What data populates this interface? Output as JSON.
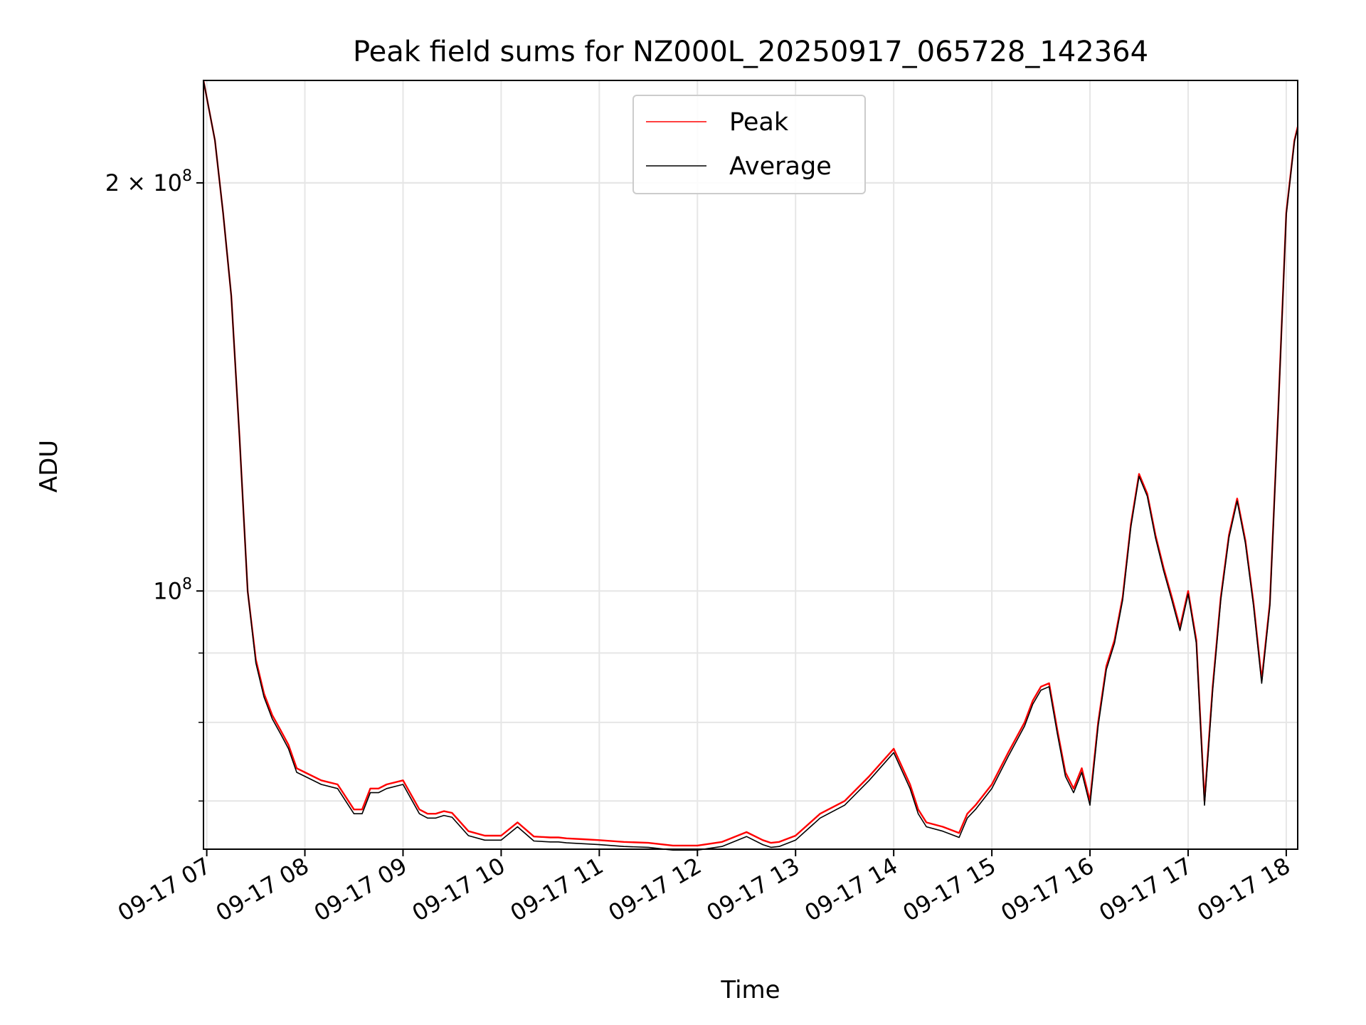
{
  "chart_data": {
    "type": "line",
    "title": "Peak field sums for NZ000L_20250917_065728_142364",
    "xlabel": "Time",
    "ylabel": "ADU",
    "yscale": "log",
    "grid": true,
    "legend_position": "top-center",
    "x_tick_labels": [
      "09-17 07",
      "09-17 08",
      "09-17 09",
      "09-17 10",
      "09-17 11",
      "09-17 12",
      "09-17 13",
      "09-17 14",
      "09-17 15",
      "09-17 16",
      "09-17 17",
      "09-17 18"
    ],
    "y_tick_labels": [
      {
        "value": 200000000,
        "base": "2 × 10",
        "exp": "8"
      },
      {
        "value": 100000000,
        "base": "10",
        "exp": "8"
      }
    ],
    "xlim": [
      "2025-09-17 06:58",
      "2025-09-17 18:07"
    ],
    "ylim": [
      64500000,
      238000000
    ],
    "x": [
      "06:58",
      "07:05",
      "07:10",
      "07:15",
      "07:20",
      "07:25",
      "07:30",
      "07:35",
      "07:40",
      "07:45",
      "07:50",
      "07:55",
      "08:00",
      "08:10",
      "08:20",
      "08:30",
      "08:35",
      "08:40",
      "08:45",
      "08:50",
      "09:00",
      "09:10",
      "09:15",
      "09:20",
      "09:25",
      "09:30",
      "09:40",
      "09:50",
      "10:00",
      "10:10",
      "10:20",
      "10:30",
      "10:35",
      "10:40",
      "10:50",
      "11:00",
      "11:15",
      "11:30",
      "11:45",
      "12:00",
      "12:15",
      "12:30",
      "12:40",
      "12:45",
      "12:50",
      "13:00",
      "13:15",
      "13:30",
      "13:45",
      "14:00",
      "14:10",
      "14:15",
      "14:20",
      "14:30",
      "14:40",
      "14:45",
      "14:50",
      "15:00",
      "15:10",
      "15:20",
      "15:25",
      "15:30",
      "15:35",
      "15:40",
      "15:45",
      "15:50",
      "15:55",
      "16:00",
      "16:05",
      "16:10",
      "16:15",
      "16:20",
      "16:25",
      "16:30",
      "16:35",
      "16:40",
      "16:45",
      "16:50",
      "16:55",
      "17:00",
      "17:05",
      "17:10",
      "17:15",
      "17:20",
      "17:25",
      "17:30",
      "17:35",
      "17:40",
      "17:45",
      "17:50",
      "17:55",
      "18:00",
      "18:05",
      "18:07"
    ],
    "series": [
      {
        "name": "Peak",
        "color": "#ff0000",
        "values": [
          238000000,
          215000000,
          190000000,
          165000000,
          130000000,
          100000000,
          89000000,
          84000000,
          81000000,
          79000000,
          77000000,
          74000000,
          73500000,
          72500000,
          72000000,
          69000000,
          69000000,
          71500000,
          71500000,
          72000000,
          72500000,
          69000000,
          68500000,
          68500000,
          68800000,
          68600000,
          66500000,
          66000000,
          66000000,
          67500000,
          65900000,
          65800000,
          65800000,
          65700000,
          65600000,
          65500000,
          65300000,
          65200000,
          64900000,
          64900000,
          65300000,
          66400000,
          65500000,
          65200000,
          65300000,
          66000000,
          68500000,
          70000000,
          73000000,
          76500000,
          72000000,
          69000000,
          67500000,
          67000000,
          66300000,
          68500000,
          69500000,
          72000000,
          76000000,
          80000000,
          83000000,
          85000000,
          85500000,
          79000000,
          73500000,
          71500000,
          74000000,
          70000000,
          80000000,
          88000000,
          92000000,
          99000000,
          112000000,
          122000000,
          118000000,
          110000000,
          104000000,
          99000000,
          94000000,
          100000000,
          92000000,
          70000000,
          85000000,
          99000000,
          110000000,
          117000000,
          109000000,
          98000000,
          86000000,
          98000000,
          135000000,
          190000000,
          215000000,
          220000000
        ]
      },
      {
        "name": "Average",
        "color": "#000000",
        "values": [
          238000000,
          215000000,
          190000000,
          165000000,
          130000000,
          100000000,
          88500000,
          83500000,
          80500000,
          78500000,
          76500000,
          73500000,
          73000000,
          72000000,
          71500000,
          68500000,
          68500000,
          71000000,
          71000000,
          71500000,
          72000000,
          68500000,
          68000000,
          68000000,
          68300000,
          68100000,
          66000000,
          65500000,
          65500000,
          67000000,
          65400000,
          65300000,
          65300000,
          65200000,
          65100000,
          65000000,
          64800000,
          64700000,
          64400000,
          64400000,
          64800000,
          65900000,
          65000000,
          64700000,
          64800000,
          65500000,
          68000000,
          69500000,
          72500000,
          76000000,
          71500000,
          68500000,
          67000000,
          66500000,
          65800000,
          68000000,
          69000000,
          71500000,
          75500000,
          79500000,
          82500000,
          84500000,
          85000000,
          78500000,
          73000000,
          71000000,
          73500000,
          69500000,
          79500000,
          87500000,
          91500000,
          98500000,
          111500000,
          121500000,
          117500000,
          109500000,
          103500000,
          98500000,
          93500000,
          99500000,
          91500000,
          69500000,
          84500000,
          98500000,
          109500000,
          116500000,
          108500000,
          97500000,
          85500000,
          97500000,
          134500000,
          189500000,
          214500000,
          219500000
        ]
      }
    ]
  }
}
